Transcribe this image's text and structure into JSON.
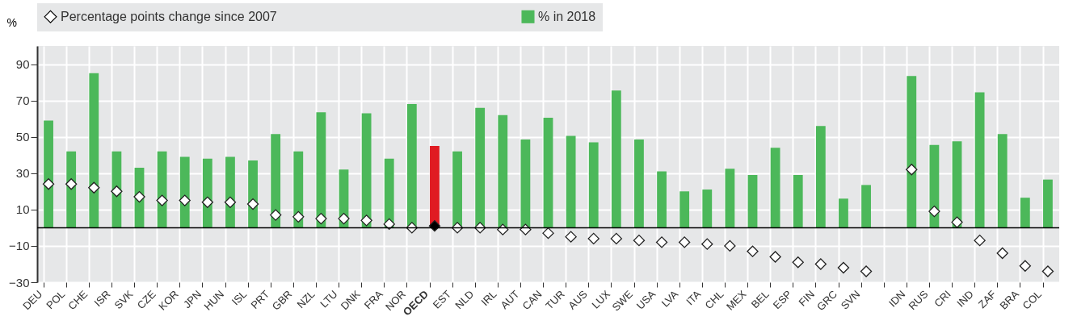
{
  "chart_data": {
    "type": "bar",
    "ylabel": "%",
    "legend": "top",
    "grid": true,
    "ylim": [
      -30,
      100
    ],
    "yticks": [
      -30,
      -10,
      10,
      30,
      50,
      70,
      90
    ],
    "categories": [
      "DEU",
      "POL",
      "CHE",
      "ISR",
      "SVK",
      "CZE",
      "KOR",
      "JPN",
      "HUN",
      "ISL",
      "PRT",
      "GBR",
      "NZL",
      "LTU",
      "DNK",
      "FRA",
      "NOR",
      "OECD",
      "EST",
      "NLD",
      "IRL",
      "AUT",
      "CAN",
      "TUR",
      "AUS",
      "LUX",
      "SWE",
      "USA",
      "LVA",
      "ITA",
      "CHL",
      "MEX",
      "BEL",
      "ESP",
      "FIN",
      "GRC",
      "SVN",
      null,
      "IDN",
      "RUS",
      "CRI",
      "IND",
      "ZAF",
      "BRA",
      "COL"
    ],
    "series": [
      {
        "name": "Percentage points change since 2007",
        "type": "scatter",
        "marker": "diamond",
        "color": "#ffffff",
        "colors": [
          "#ffffff",
          "#ffffff",
          "#ffffff",
          "#ffffff",
          "#ffffff",
          "#ffffff",
          "#ffffff",
          "#ffffff",
          "#ffffff",
          "#ffffff",
          "#ffffff",
          "#ffffff",
          "#ffffff",
          "#ffffff",
          "#ffffff",
          "#ffffff",
          "#ffffff",
          "#000000",
          "#ffffff",
          "#ffffff",
          "#ffffff",
          "#ffffff",
          "#ffffff",
          "#ffffff",
          "#ffffff",
          "#ffffff",
          "#ffffff",
          "#ffffff",
          "#ffffff",
          "#ffffff",
          "#ffffff",
          "#ffffff",
          "#ffffff",
          "#ffffff",
          "#ffffff",
          "#ffffff",
          "#ffffff",
          null,
          "#ffffff",
          "#ffffff",
          "#ffffff",
          "#ffffff",
          "#ffffff",
          "#ffffff",
          "#ffffff"
        ],
        "values": [
          24,
          24,
          22,
          20,
          17,
          15,
          15,
          14,
          14,
          13,
          7,
          6,
          5,
          5,
          4,
          2,
          0,
          1,
          0,
          0,
          -1,
          -1,
          -3,
          -5,
          -6,
          -6,
          -7,
          -8,
          -8,
          -9,
          -10,
          -13,
          -16,
          -19,
          -20,
          -22,
          -24,
          null,
          32,
          9,
          3,
          -7,
          -14,
          -21,
          -24
        ]
      },
      {
        "name": "% in 2018",
        "color": "#4cb85a",
        "colors": [
          "#4cb85a",
          "#4cb85a",
          "#4cb85a",
          "#4cb85a",
          "#4cb85a",
          "#4cb85a",
          "#4cb85a",
          "#4cb85a",
          "#4cb85a",
          "#4cb85a",
          "#4cb85a",
          "#4cb85a",
          "#4cb85a",
          "#4cb85a",
          "#4cb85a",
          "#4cb85a",
          "#4cb85a",
          "#e01b22",
          "#4cb85a",
          "#4cb85a",
          "#4cb85a",
          "#4cb85a",
          "#4cb85a",
          "#4cb85a",
          "#4cb85a",
          "#4cb85a",
          "#4cb85a",
          "#4cb85a",
          "#4cb85a",
          "#4cb85a",
          "#4cb85a",
          "#4cb85a",
          "#4cb85a",
          "#4cb85a",
          "#4cb85a",
          "#4cb85a",
          "#4cb85a",
          null,
          "#4cb85a",
          "#4cb85a",
          "#4cb85a",
          "#4cb85a",
          "#4cb85a",
          "#4cb85a",
          "#4cb85a"
        ],
        "values": [
          59,
          42,
          85,
          42,
          33,
          42,
          39,
          38,
          39,
          37,
          51.5,
          42,
          63.5,
          32,
          63,
          38,
          68,
          45,
          42,
          66,
          62,
          48.5,
          60.5,
          50.5,
          47,
          75.5,
          48.5,
          31,
          20,
          21,
          32.5,
          29,
          44,
          29,
          56,
          16,
          23.5,
          null,
          83.5,
          45.5,
          47.5,
          74.5,
          51.5,
          16.5,
          26.5
        ]
      }
    ],
    "ref_lines": [
      {
        "axis": "y",
        "value": 0,
        "color": "#000000"
      }
    ]
  }
}
